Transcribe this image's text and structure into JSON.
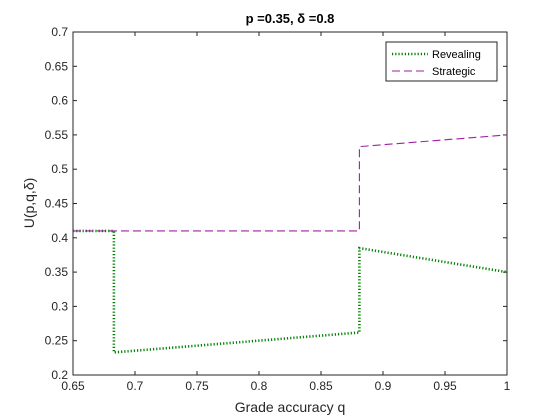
{
  "chart_data": {
    "type": "line",
    "title": "p =0.35, δ =0.8",
    "xlabel": "Grade accuracy q",
    "ylabel": "U(p,q,δ)",
    "xlim": [
      0.65,
      1.0
    ],
    "ylim": [
      0.2,
      0.7
    ],
    "x_ticks": [
      "0.65",
      "0.7",
      "0.75",
      "0.8",
      "0.85",
      "0.9",
      "0.95",
      "1"
    ],
    "y_ticks": [
      "0.2",
      "0.25",
      "0.3",
      "0.35",
      "0.4",
      "0.45",
      "0.5",
      "0.55",
      "0.6",
      "0.65",
      "0.7"
    ],
    "grid": false,
    "legend_position": "top-right",
    "series": [
      {
        "name": "Revealing",
        "color": "#008000",
        "style": "dotted",
        "points": [
          [
            0.65,
            0.41
          ],
          [
            0.683,
            0.41
          ],
          [
            0.683,
            0.233
          ],
          [
            0.881,
            0.262
          ],
          [
            0.881,
            0.385
          ],
          [
            1.0,
            0.35
          ]
        ]
      },
      {
        "name": "Strategic",
        "color": "#a020a0",
        "style": "dashed",
        "points": [
          [
            0.65,
            0.41
          ],
          [
            0.881,
            0.41
          ],
          [
            0.881,
            0.533
          ],
          [
            1.0,
            0.55
          ]
        ]
      }
    ]
  }
}
